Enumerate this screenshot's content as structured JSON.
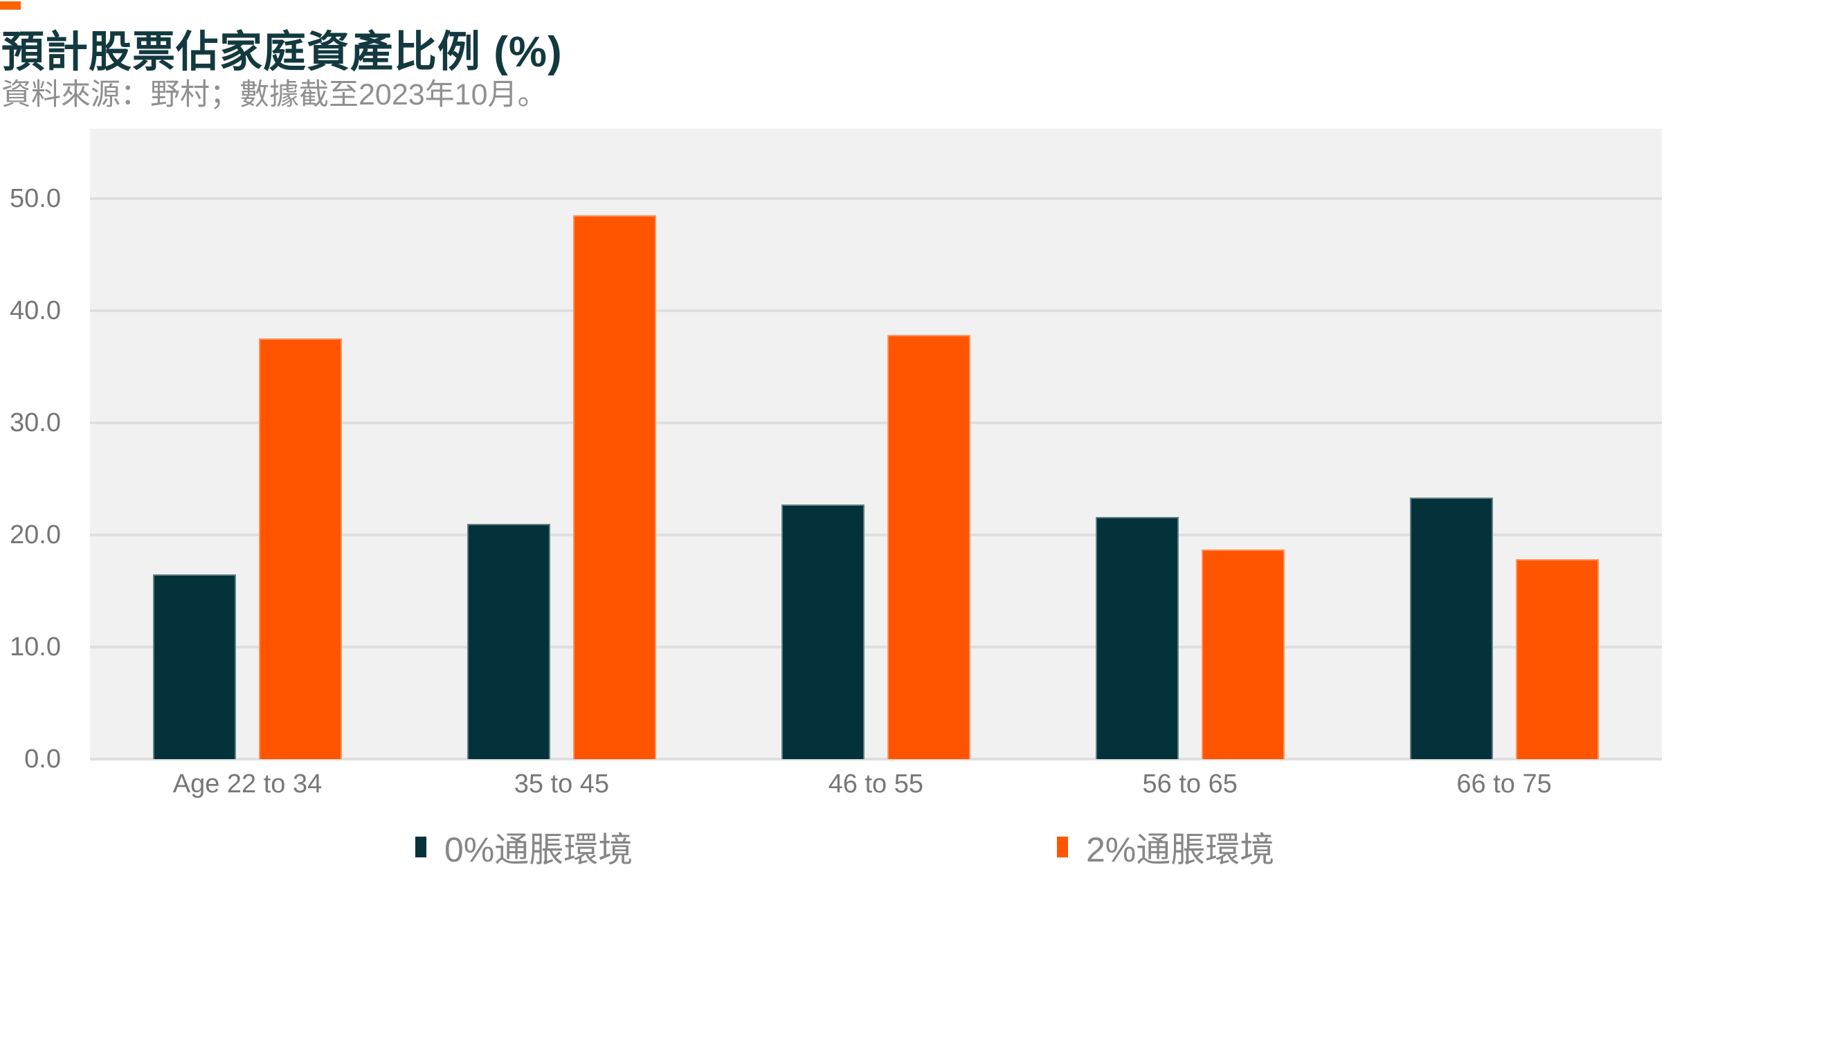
{
  "header": {
    "title": "預計股票佔家庭資產比例 (%)",
    "subtitle": "資料來源：野村；數據截至2023年10月。"
  },
  "colors": {
    "accent_block": "#FA6400",
    "series": [
      "#04323B",
      "#FF5500"
    ],
    "plot_bg": "#F1F1F1",
    "gridline": "#DFDFDF",
    "title_text": "#133940",
    "subtitle_text": "#909090",
    "axis_text": "#757575",
    "legend_text": "#868686"
  },
  "chart_data": {
    "type": "bar",
    "title": "預計股票佔家庭資產比例 (%)",
    "source_note": "資料來源：野村；數據截至2023年10月。",
    "categories": [
      "Age 22 to 34",
      "35 to 45",
      "46 to 55",
      "56 to 65",
      "66 to 75"
    ],
    "series": [
      {
        "name": "0%通脹環境",
        "color": "#04323B",
        "values": [
          16.5,
          21.0,
          22.7,
          21.6,
          23.3
        ]
      },
      {
        "name": "2%通脹環境",
        "color": "#FF5500",
        "values": [
          37.5,
          48.5,
          37.8,
          18.7,
          17.8
        ]
      }
    ],
    "xlabel": "",
    "ylabel": "",
    "yticks": [
      0,
      10,
      20,
      30,
      40,
      50
    ],
    "ytick_labels": [
      "0.0",
      "10.0",
      "20.0",
      "30.0",
      "40.0",
      "50.0"
    ],
    "ylim": [
      0,
      56.2
    ],
    "grid": "horizontal",
    "legend_position": "bottom"
  },
  "legend": {
    "items": [
      {
        "label": "0%通脹環境",
        "color": "#04323B"
      },
      {
        "label": "2%通脹環境",
        "color": "#FF5500"
      }
    ]
  }
}
